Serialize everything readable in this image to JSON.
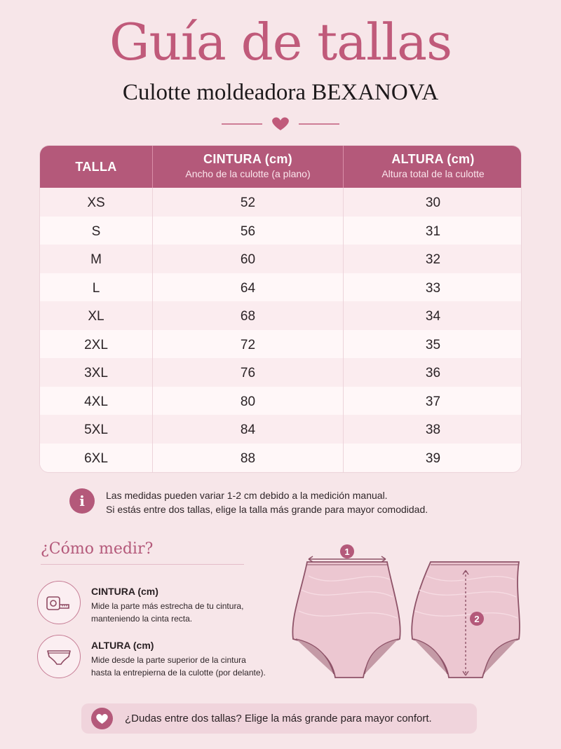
{
  "header": {
    "title": "Guía de tallas",
    "subtitle": "Culotte moldeadora BEXANOVA"
  },
  "colors": {
    "accent": "#b4597a",
    "title": "#c05a7a",
    "background": "#f7e6e9"
  },
  "table": {
    "columns": [
      {
        "label": "TALLA",
        "sublabel": ""
      },
      {
        "label": "CINTURA (cm)",
        "sublabel": "Ancho de la culotte (a plano)"
      },
      {
        "label": "ALTURA (cm)",
        "sublabel": "Altura total de la culotte"
      }
    ],
    "rows": [
      {
        "size": "XS",
        "waist": "52",
        "height": "30"
      },
      {
        "size": "S",
        "waist": "56",
        "height": "31"
      },
      {
        "size": "M",
        "waist": "60",
        "height": "32"
      },
      {
        "size": "L",
        "waist": "64",
        "height": "33"
      },
      {
        "size": "XL",
        "waist": "68",
        "height": "34"
      },
      {
        "size": "2XL",
        "waist": "72",
        "height": "35"
      },
      {
        "size": "3XL",
        "waist": "76",
        "height": "36"
      },
      {
        "size": "4XL",
        "waist": "80",
        "height": "37"
      },
      {
        "size": "5XL",
        "waist": "84",
        "height": "38"
      },
      {
        "size": "6XL",
        "waist": "88",
        "height": "39"
      }
    ]
  },
  "note": {
    "icon": "info-icon",
    "line1": "Las medidas pueden variar 1-2 cm debido a la medición manual.",
    "line2": "Si estás entre dos tallas, elige la talla más grande para mayor comodidad."
  },
  "how_to": {
    "title": "¿Cómo medir?",
    "items": [
      {
        "icon": "tape-measure-icon",
        "title": "CINTURA (cm)",
        "desc1": "Mide la parte más estrecha de tu cintura,",
        "desc2": "manteniendo la cinta recta."
      },
      {
        "icon": "underwear-icon",
        "title": "ALTURA (cm)",
        "desc1": "Mide desde la parte superior de la cintura",
        "desc2": "hasta la entrepierna de la culotte (por delante)."
      }
    ],
    "marker_1": "1",
    "marker_2": "2"
  },
  "banner": {
    "icon": "heart-icon",
    "text": "¿Dudas entre dos tallas? Elige la más grande para mayor confort."
  }
}
